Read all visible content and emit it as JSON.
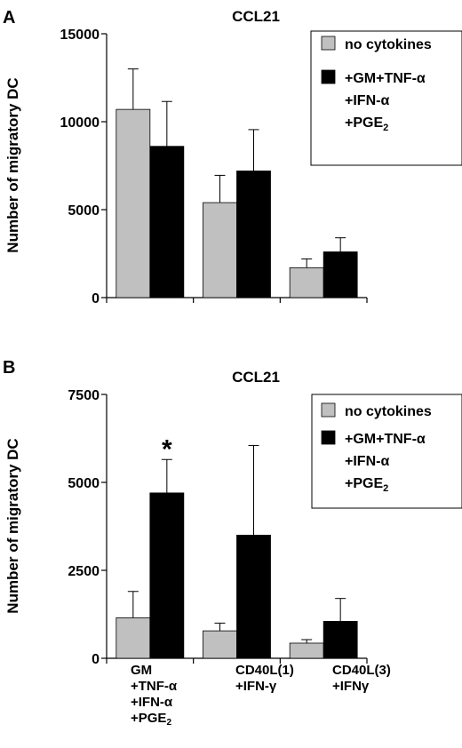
{
  "panels": [
    {
      "letter": "A",
      "title": "CCL21",
      "ylabel": "Number of migratory DC",
      "legend": {
        "items": [
          "no cytokines",
          "+GM+TNF-α",
          "+IFN-α",
          "+PGE2"
        ]
      },
      "show_star": false
    },
    {
      "letter": "B",
      "title": "CCL21",
      "ylabel": "Number of migratory DC",
      "legend": {
        "items": [
          "no cytokines",
          "+GM+TNF-α",
          "+IFN-α",
          "+PGE2"
        ]
      },
      "show_star": true,
      "star": "*"
    }
  ],
  "categories": [
    [
      "GM",
      "+TNF-α",
      "+IFN-α",
      "+PGE2"
    ],
    [
      "CD40L(1)",
      "+IFN-γ"
    ],
    [
      "CD40L(3)",
      "+IFNγ"
    ]
  ],
  "colors": {
    "no_cytokines": "#c0c0c0",
    "cytokines": "#000000"
  },
  "chart_data": [
    {
      "type": "bar",
      "title": "CCL21",
      "ylabel": "Number of migratory DC",
      "ylim": [
        0,
        15000
      ],
      "yticks": [
        0,
        5000,
        10000,
        15000
      ],
      "categories": [
        "GM +TNF-α +IFN-α +PGE2",
        "CD40L(1) +IFN-γ",
        "CD40L(3) +IFNγ"
      ],
      "series": [
        {
          "name": "no cytokines",
          "values": [
            10700,
            5400,
            1700
          ],
          "errors": [
            2300,
            1550,
            500
          ]
        },
        {
          "name": "+GM+TNF-α +IFN-α +PGE2",
          "values": [
            8600,
            7200,
            2600
          ],
          "errors": [
            2550,
            2350,
            800
          ]
        }
      ],
      "legend_position": "top-right"
    },
    {
      "type": "bar",
      "title": "CCL21",
      "ylabel": "Number of migratory DC",
      "ylim": [
        0,
        7500
      ],
      "yticks": [
        0,
        2500,
        5000,
        7500
      ],
      "categories": [
        "GM +TNF-α +IFN-α +PGE2",
        "CD40L(1) +IFN-γ",
        "CD40L(3) +IFNγ"
      ],
      "series": [
        {
          "name": "no cytokines",
          "values": [
            1150,
            780,
            430
          ],
          "errors": [
            750,
            220,
            100
          ]
        },
        {
          "name": "+GM+TNF-α +IFN-α +PGE2",
          "values": [
            4700,
            3500,
            1050
          ],
          "errors": [
            950,
            2550,
            650
          ]
        }
      ],
      "legend_position": "top-right",
      "annotations": [
        "*"
      ]
    }
  ]
}
